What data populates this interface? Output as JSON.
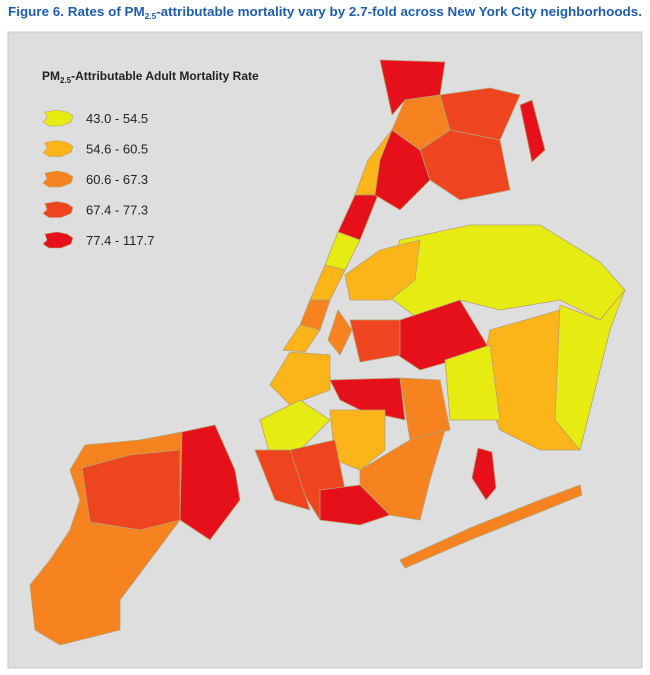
{
  "header": {
    "title": [
      "Figure 6. Rates of PM",
      "2.5",
      "-attributable mortality vary by 2.7-fold across New York City neighborhoods."
    ]
  },
  "legend": {
    "title": [
      "PM",
      "2.5",
      "-Attributable Adult Mortality Rate"
    ],
    "items": [
      {
        "label": "43.0 - 54.5",
        "color": "#e6ec12"
      },
      {
        "label": "54.6 - 60.5",
        "color": "#fbb519"
      },
      {
        "label": "60.6 - 67.3",
        "color": "#f6831f"
      },
      {
        "label": "67.4 - 77.3",
        "color": "#ef4420"
      },
      {
        "label": "77.4 - 117.7",
        "color": "#e5101a"
      }
    ]
  }
}
